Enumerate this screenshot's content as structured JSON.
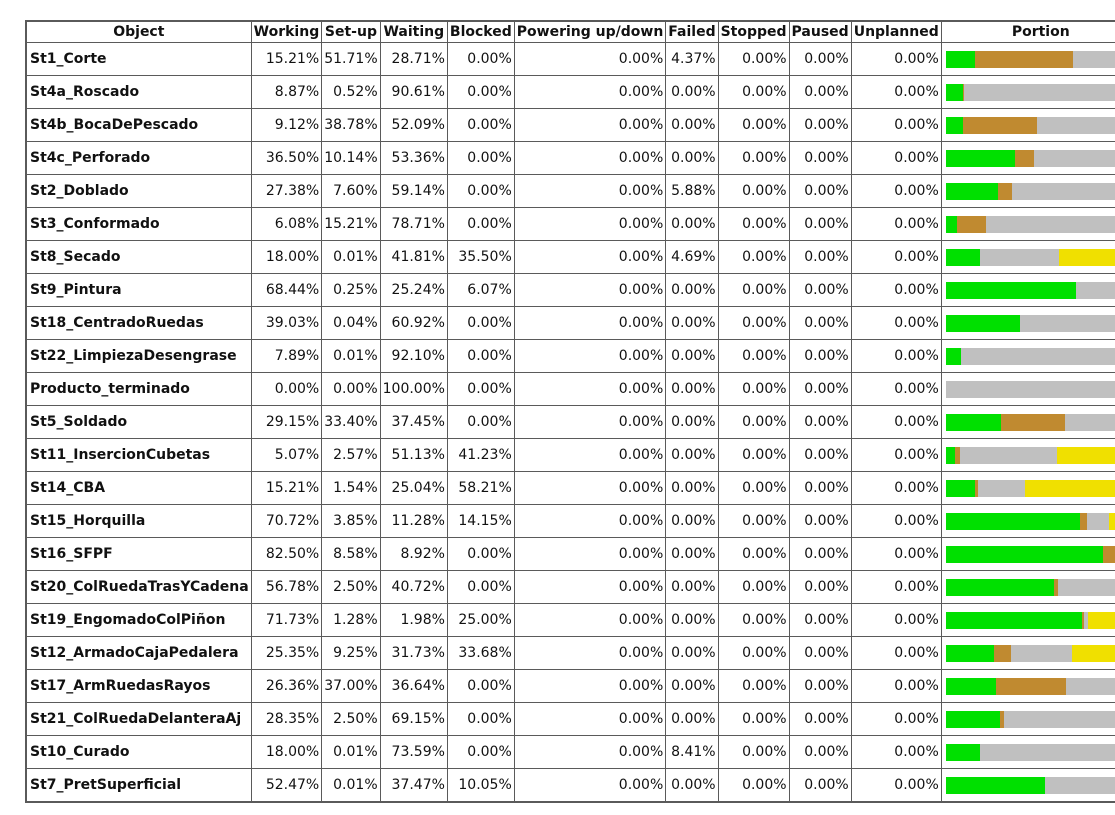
{
  "chart_data": {
    "type": "table",
    "columns": [
      "Object",
      "Working",
      "Set-up",
      "Waiting",
      "Blocked",
      "Powering up/down",
      "Failed",
      "Stopped",
      "Paused",
      "Unplanned",
      "Portion"
    ],
    "status_colors": {
      "Working": "#00e000",
      "Set-up": "#c08a30",
      "Waiting": "#c0c0c0",
      "Blocked": "#f0e000",
      "Failed": "#ff0000"
    },
    "rows": [
      {
        "name": "St1_Corte",
        "working": "15.21%",
        "setup": "51.71%",
        "waiting": "28.71%",
        "blocked": "0.00%",
        "powering": "0.00%",
        "failed": "4.37%",
        "stopped": "0.00%",
        "paused": "0.00%",
        "unplanned": "0.00%"
      },
      {
        "name": "St4a_Roscado",
        "working": "8.87%",
        "setup": "0.52%",
        "waiting": "90.61%",
        "blocked": "0.00%",
        "powering": "0.00%",
        "failed": "0.00%",
        "stopped": "0.00%",
        "paused": "0.00%",
        "unplanned": "0.00%"
      },
      {
        "name": "St4b_BocaDePescado",
        "working": "9.12%",
        "setup": "38.78%",
        "waiting": "52.09%",
        "blocked": "0.00%",
        "powering": "0.00%",
        "failed": "0.00%",
        "stopped": "0.00%",
        "paused": "0.00%",
        "unplanned": "0.00%"
      },
      {
        "name": "St4c_Perforado",
        "working": "36.50%",
        "setup": "10.14%",
        "waiting": "53.36%",
        "blocked": "0.00%",
        "powering": "0.00%",
        "failed": "0.00%",
        "stopped": "0.00%",
        "paused": "0.00%",
        "unplanned": "0.00%"
      },
      {
        "name": "St2_Doblado",
        "working": "27.38%",
        "setup": "7.60%",
        "waiting": "59.14%",
        "blocked": "0.00%",
        "powering": "0.00%",
        "failed": "5.88%",
        "stopped": "0.00%",
        "paused": "0.00%",
        "unplanned": "0.00%"
      },
      {
        "name": "St3_Conformado",
        "working": "6.08%",
        "setup": "15.21%",
        "waiting": "78.71%",
        "blocked": "0.00%",
        "powering": "0.00%",
        "failed": "0.00%",
        "stopped": "0.00%",
        "paused": "0.00%",
        "unplanned": "0.00%"
      },
      {
        "name": "St8_Secado",
        "working": "18.00%",
        "setup": "0.01%",
        "waiting": "41.81%",
        "blocked": "35.50%",
        "powering": "0.00%",
        "failed": "4.69%",
        "stopped": "0.00%",
        "paused": "0.00%",
        "unplanned": "0.00%"
      },
      {
        "name": "St9_Pintura",
        "working": "68.44%",
        "setup": "0.25%",
        "waiting": "25.24%",
        "blocked": "6.07%",
        "powering": "0.00%",
        "failed": "0.00%",
        "stopped": "0.00%",
        "paused": "0.00%",
        "unplanned": "0.00%"
      },
      {
        "name": "St18_CentradoRuedas",
        "working": "39.03%",
        "setup": "0.04%",
        "waiting": "60.92%",
        "blocked": "0.00%",
        "powering": "0.00%",
        "failed": "0.00%",
        "stopped": "0.00%",
        "paused": "0.00%",
        "unplanned": "0.00%"
      },
      {
        "name": "St22_LimpiezaDesengrase",
        "working": "7.89%",
        "setup": "0.01%",
        "waiting": "92.10%",
        "blocked": "0.00%",
        "powering": "0.00%",
        "failed": "0.00%",
        "stopped": "0.00%",
        "paused": "0.00%",
        "unplanned": "0.00%"
      },
      {
        "name": "Producto_terminado",
        "working": "0.00%",
        "setup": "0.00%",
        "waiting": "100.00%",
        "blocked": "0.00%",
        "powering": "0.00%",
        "failed": "0.00%",
        "stopped": "0.00%",
        "paused": "0.00%",
        "unplanned": "0.00%"
      },
      {
        "name": "St5_Soldado",
        "working": "29.15%",
        "setup": "33.40%",
        "waiting": "37.45%",
        "blocked": "0.00%",
        "powering": "0.00%",
        "failed": "0.00%",
        "stopped": "0.00%",
        "paused": "0.00%",
        "unplanned": "0.00%"
      },
      {
        "name": "St11_InsercionCubetas",
        "working": "5.07%",
        "setup": "2.57%",
        "waiting": "51.13%",
        "blocked": "41.23%",
        "powering": "0.00%",
        "failed": "0.00%",
        "stopped": "0.00%",
        "paused": "0.00%",
        "unplanned": "0.00%"
      },
      {
        "name": "St14_CBA",
        "working": "15.21%",
        "setup": "1.54%",
        "waiting": "25.04%",
        "blocked": "58.21%",
        "powering": "0.00%",
        "failed": "0.00%",
        "stopped": "0.00%",
        "paused": "0.00%",
        "unplanned": "0.00%"
      },
      {
        "name": "St15_Horquilla",
        "working": "70.72%",
        "setup": "3.85%",
        "waiting": "11.28%",
        "blocked": "14.15%",
        "powering": "0.00%",
        "failed": "0.00%",
        "stopped": "0.00%",
        "paused": "0.00%",
        "unplanned": "0.00%"
      },
      {
        "name": "St16_SFPF",
        "working": "82.50%",
        "setup": "8.58%",
        "waiting": "8.92%",
        "blocked": "0.00%",
        "powering": "0.00%",
        "failed": "0.00%",
        "stopped": "0.00%",
        "paused": "0.00%",
        "unplanned": "0.00%"
      },
      {
        "name": "St20_ColRuedaTrasYCadena",
        "working": "56.78%",
        "setup": "2.50%",
        "waiting": "40.72%",
        "blocked": "0.00%",
        "powering": "0.00%",
        "failed": "0.00%",
        "stopped": "0.00%",
        "paused": "0.00%",
        "unplanned": "0.00%"
      },
      {
        "name": "St19_EngomadoColPiñon",
        "working": "71.73%",
        "setup": "1.28%",
        "waiting": "1.98%",
        "blocked": "25.00%",
        "powering": "0.00%",
        "failed": "0.00%",
        "stopped": "0.00%",
        "paused": "0.00%",
        "unplanned": "0.00%"
      },
      {
        "name": "St12_ArmadoCajaPedalera",
        "working": "25.35%",
        "setup": "9.25%",
        "waiting": "31.73%",
        "blocked": "33.68%",
        "powering": "0.00%",
        "failed": "0.00%",
        "stopped": "0.00%",
        "paused": "0.00%",
        "unplanned": "0.00%"
      },
      {
        "name": "St17_ArmRuedasRayos",
        "working": "26.36%",
        "setup": "37.00%",
        "waiting": "36.64%",
        "blocked": "0.00%",
        "powering": "0.00%",
        "failed": "0.00%",
        "stopped": "0.00%",
        "paused": "0.00%",
        "unplanned": "0.00%"
      },
      {
        "name": "St21_ColRuedaDelanteraAj",
        "working": "28.35%",
        "setup": "2.50%",
        "waiting": "69.15%",
        "blocked": "0.00%",
        "powering": "0.00%",
        "failed": "0.00%",
        "stopped": "0.00%",
        "paused": "0.00%",
        "unplanned": "0.00%"
      },
      {
        "name": "St10_Curado",
        "working": "18.00%",
        "setup": "0.01%",
        "waiting": "73.59%",
        "blocked": "0.00%",
        "powering": "0.00%",
        "failed": "8.41%",
        "stopped": "0.00%",
        "paused": "0.00%",
        "unplanned": "0.00%"
      },
      {
        "name": "St7_PretSuperficial",
        "working": "52.47%",
        "setup": "0.01%",
        "waiting": "37.47%",
        "blocked": "10.05%",
        "powering": "0.00%",
        "failed": "0.00%",
        "stopped": "0.00%",
        "paused": "0.00%",
        "unplanned": "0.00%"
      }
    ]
  }
}
